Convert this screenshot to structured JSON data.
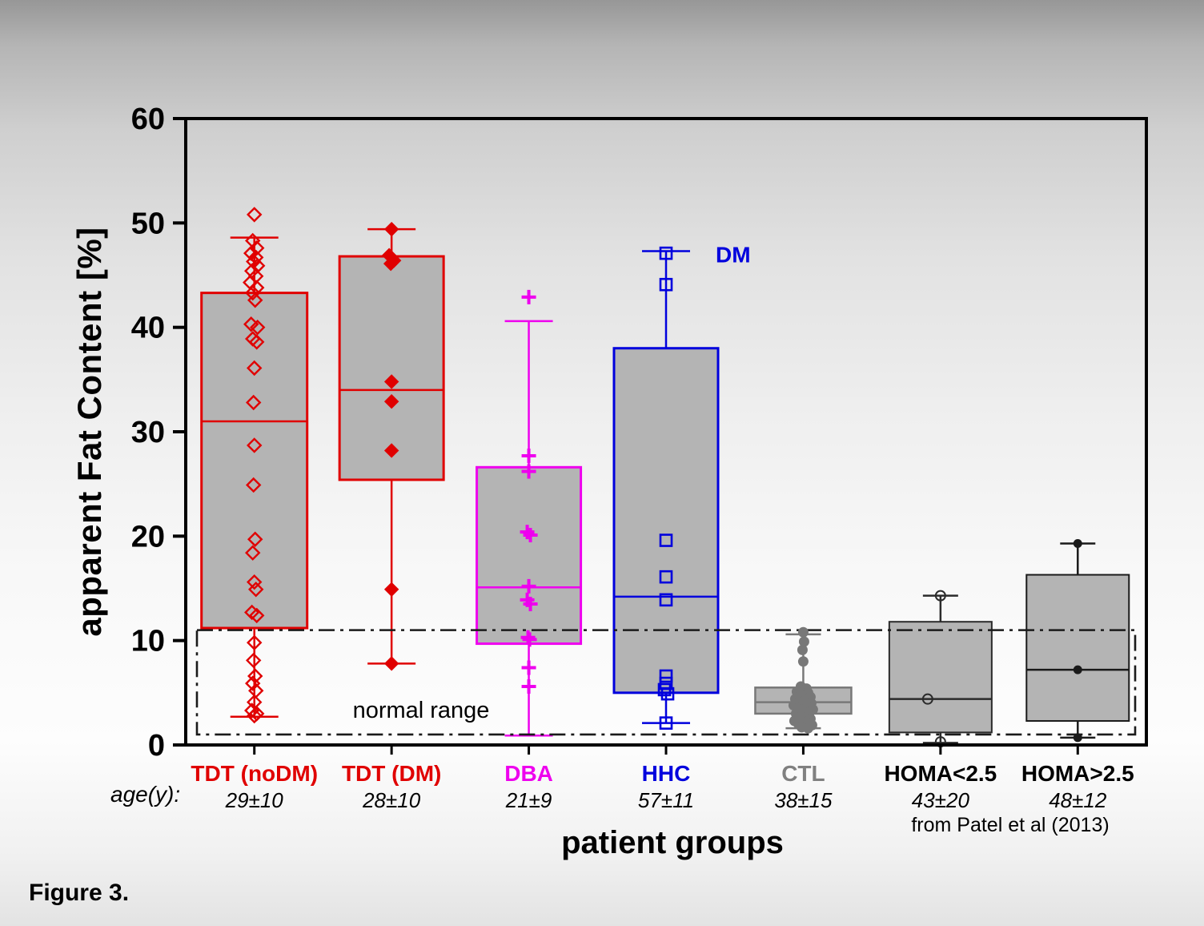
{
  "labels": {
    "age_prefix": "age(y):",
    "source_note": "from Patel et al (2013)",
    "figure_label": "Figure 3."
  },
  "chart_data": {
    "type": "box",
    "title": "",
    "ylabel": "apparent Fat Content [%]",
    "xlabel": "patient groups",
    "ylim": [
      0,
      60
    ],
    "yticks": [
      0,
      10,
      20,
      30,
      40,
      50,
      60
    ],
    "grid": false,
    "box_fill": "#b4b4b4",
    "frame_color": "#000000",
    "normal_range": {
      "low": 1,
      "high": 11,
      "label": "normal range",
      "label_x_frac": 0.245,
      "label_value": 2.6,
      "line_color": "#1a1a1a"
    },
    "annotations": [
      {
        "text": "DM",
        "group_index": 3,
        "value": 47,
        "dx": 62,
        "color": "#0000dd"
      }
    ],
    "groups": [
      {
        "name": "TDT (noDM)",
        "age": "29±10",
        "color": "#e00000",
        "marker": "open-diamond",
        "box": {
          "q1": 11.2,
          "median": 31,
          "q3": 43.3,
          "whisker_low": 2.7,
          "whisker_high": 48.6
        },
        "points": [
          [
            50.8,
            0
          ],
          [
            48.3,
            -2
          ],
          [
            47.6,
            3
          ],
          [
            47.1,
            -4
          ],
          [
            46.7,
            2
          ],
          [
            46.3,
            -1
          ],
          [
            45.9,
            4
          ],
          [
            45.4,
            -3
          ],
          [
            44.9,
            2
          ],
          [
            44.3,
            -5
          ],
          [
            43.8,
            3
          ],
          [
            43.3,
            -2
          ],
          [
            42.6,
            1
          ],
          [
            40.3,
            -4
          ],
          [
            40.0,
            4
          ],
          [
            38.9,
            -2
          ],
          [
            38.6,
            3
          ],
          [
            36.1,
            0
          ],
          [
            32.8,
            -1
          ],
          [
            28.7,
            0
          ],
          [
            24.9,
            -1
          ],
          [
            19.7,
            1
          ],
          [
            18.4,
            -2
          ],
          [
            15.6,
            0
          ],
          [
            14.9,
            2
          ],
          [
            12.7,
            -3
          ],
          [
            12.4,
            3
          ],
          [
            9.8,
            0
          ],
          [
            8.1,
            -1
          ],
          [
            6.6,
            1
          ],
          [
            5.9,
            -2
          ],
          [
            5.2,
            2
          ],
          [
            4.1,
            0
          ],
          [
            3.3,
            -3
          ],
          [
            3.0,
            3
          ],
          [
            2.8,
            0
          ]
        ]
      },
      {
        "name": "TDT (DM)",
        "age": "28±10",
        "color": "#e00000",
        "marker": "filled-diamond",
        "box": {
          "q1": 25.4,
          "median": 34,
          "q3": 46.8,
          "whisker_low": 7.8,
          "whisker_high": 49.4
        },
        "points": [
          [
            49.4,
            0
          ],
          [
            46.9,
            -3
          ],
          [
            46.4,
            3
          ],
          [
            46.1,
            -1
          ],
          [
            34.8,
            0
          ],
          [
            32.9,
            0
          ],
          [
            28.2,
            0
          ],
          [
            14.9,
            0
          ],
          [
            7.8,
            0
          ]
        ]
      },
      {
        "name": "DBA",
        "age": "21±9",
        "color": "#ee00ee",
        "marker": "plus",
        "box": {
          "q1": 9.7,
          "median": 15.1,
          "q3": 26.6,
          "whisker_low": 0.9,
          "whisker_high": 40.6
        },
        "points": [
          [
            42.9,
            0
          ],
          [
            27.7,
            0
          ],
          [
            26.2,
            0
          ],
          [
            20.4,
            -2
          ],
          [
            20.1,
            2
          ],
          [
            15.2,
            0
          ],
          [
            13.9,
            -2
          ],
          [
            13.5,
            2
          ],
          [
            10.3,
            -1
          ],
          [
            10.1,
            1
          ],
          [
            7.4,
            0
          ],
          [
            5.6,
            0
          ]
        ]
      },
      {
        "name": "HHC",
        "age": "57±11",
        "color": "#0000dd",
        "marker": "open-square",
        "box": {
          "q1": 5.0,
          "median": 14.2,
          "q3": 38.0,
          "whisker_low": 2.1,
          "whisker_high": 47.3
        },
        "points": [
          [
            47.1,
            0
          ],
          [
            44.1,
            0
          ],
          [
            19.6,
            0
          ],
          [
            16.1,
            0
          ],
          [
            13.9,
            0
          ],
          [
            6.6,
            0
          ],
          [
            5.9,
            0
          ],
          [
            5.3,
            -2
          ],
          [
            4.9,
            2
          ],
          [
            2.1,
            0
          ]
        ]
      },
      {
        "name": "CTL",
        "age": "38±15",
        "color": "#787878",
        "label_color": "#808080",
        "marker": "filled-circle",
        "box": {
          "q1": 3.0,
          "median": 4.1,
          "q3": 5.5,
          "whisker_low": 1.6,
          "whisker_high": 10.6
        },
        "points": [
          [
            10.8,
            0
          ],
          [
            9.9,
            1
          ],
          [
            9.1,
            -1
          ],
          [
            8.0,
            0
          ],
          [
            5.6,
            -3
          ],
          [
            5.4,
            4
          ],
          [
            5.1,
            -8
          ],
          [
            5.0,
            6
          ],
          [
            4.8,
            -2
          ],
          [
            4.6,
            9
          ],
          [
            4.4,
            -10
          ],
          [
            4.3,
            3
          ],
          [
            4.1,
            -5
          ],
          [
            4.0,
            10
          ],
          [
            3.8,
            -12
          ],
          [
            3.7,
            5
          ],
          [
            3.5,
            -7
          ],
          [
            3.4,
            12
          ],
          [
            3.2,
            0
          ],
          [
            3.0,
            -9
          ],
          [
            2.9,
            7
          ],
          [
            2.7,
            -3
          ],
          [
            2.5,
            9
          ],
          [
            2.3,
            -11
          ],
          [
            2.2,
            4
          ],
          [
            2.0,
            -6
          ],
          [
            1.9,
            11
          ],
          [
            1.7,
            -2
          ],
          [
            1.6,
            6
          ]
        ]
      },
      {
        "name": "HOMA<2.5",
        "age": "43±20",
        "color": "#2b2b2b",
        "label_color": "#000000",
        "marker": "open-circle",
        "box": {
          "q1": 1.2,
          "median": 4.4,
          "q3": 11.8,
          "whisker_low": 0.2,
          "whisker_high": 14.3
        },
        "points": [
          [
            14.3,
            0
          ],
          [
            4.4,
            -16
          ],
          [
            0.3,
            0
          ]
        ]
      },
      {
        "name": "HOMA>2.5",
        "age": "48±12",
        "color": "#1a1a1a",
        "label_color": "#000000",
        "marker": "filled-circle-small",
        "box": {
          "q1": 2.3,
          "median": 7.2,
          "q3": 16.3,
          "whisker_low": 0.7,
          "whisker_high": 19.3
        },
        "points": [
          [
            19.3,
            0
          ],
          [
            7.2,
            0
          ],
          [
            0.7,
            0
          ]
        ]
      }
    ]
  }
}
